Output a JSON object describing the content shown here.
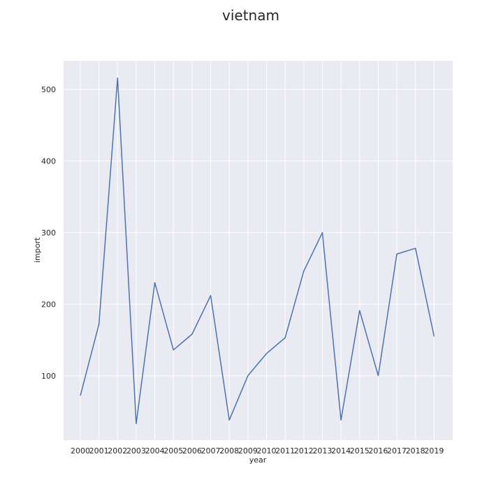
{
  "chart_data": {
    "type": "line",
    "title": "vietnam",
    "xlabel": "year",
    "ylabel": "import",
    "x": [
      2000,
      2001,
      2002,
      2003,
      2004,
      2005,
      2006,
      2007,
      2008,
      2009,
      2010,
      2011,
      2012,
      2013,
      2014,
      2015,
      2016,
      2017,
      2018,
      2019
    ],
    "series": [
      {
        "values": [
          72,
          172,
          516,
          33,
          230,
          136,
          158,
          212,
          38,
          100,
          131,
          153,
          246,
          300,
          38,
          191,
          100,
          270,
          278,
          155
        ]
      }
    ],
    "yticks": [
      100,
      200,
      300,
      400,
      500
    ],
    "xlim": [
      1999.1,
      2020.0
    ],
    "ylim": [
      10,
      540
    ],
    "grid": true,
    "line_color": "#4c72b0",
    "background_color": "#eaeaf2",
    "grid_color": "#ffffff"
  }
}
